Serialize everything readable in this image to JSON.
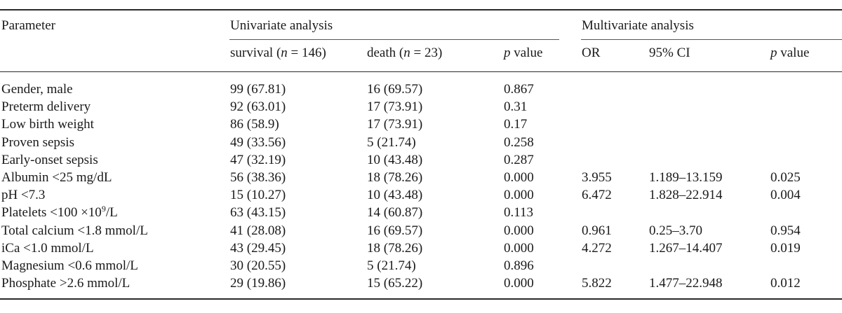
{
  "table": {
    "header": {
      "parameter": "Parameter",
      "univariate": "Univariate analysis",
      "multivariate": "Multivariate analysis"
    },
    "subheaders": {
      "survival": {
        "pre": "survival (",
        "var": "n",
        "post": " = 146)"
      },
      "death": {
        "pre": "death (",
        "var": "n",
        "post": " = 23)"
      },
      "p_uni": {
        "var": "p",
        "post": " value"
      },
      "or": "OR",
      "ci": "95% CI",
      "p_multi": {
        "var": "p",
        "post": " value"
      }
    },
    "rows": [
      {
        "param": "Gender, male",
        "sup": "",
        "param_post": "",
        "survival": "99 (67.81)",
        "death": "16 (69.57)",
        "p": "0.867",
        "or": "",
        "ci": "",
        "p2": ""
      },
      {
        "param": "Preterm delivery",
        "sup": "",
        "param_post": "",
        "survival": "92 (63.01)",
        "death": "17 (73.91)",
        "p": "0.31",
        "or": "",
        "ci": "",
        "p2": ""
      },
      {
        "param": "Low birth weight",
        "sup": "",
        "param_post": "",
        "survival": "86 (58.9)",
        "death": "17 (73.91)",
        "p": "0.17",
        "or": "",
        "ci": "",
        "p2": ""
      },
      {
        "param": "Proven sepsis",
        "sup": "",
        "param_post": "",
        "survival": "49 (33.56)",
        "death": "5 (21.74)",
        "p": "0.258",
        "or": "",
        "ci": "",
        "p2": ""
      },
      {
        "param": "Early-onset sepsis",
        "sup": "",
        "param_post": "",
        "survival": "47 (32.19)",
        "death": "10 (43.48)",
        "p": "0.287",
        "or": "",
        "ci": "",
        "p2": ""
      },
      {
        "param": "Albumin <25 mg/dL",
        "sup": "",
        "param_post": "",
        "survival": "56 (38.36)",
        "death": "18 (78.26)",
        "p": "0.000",
        "or": "3.955",
        "ci": "1.189–13.159",
        "p2": "0.025"
      },
      {
        "param": "pH <7.3",
        "sup": "",
        "param_post": "",
        "survival": "15 (10.27)",
        "death": "10 (43.48)",
        "p": "0.000",
        "or": "6.472",
        "ci": "1.828–22.914",
        "p2": "0.004"
      },
      {
        "param": "Platelets <100 ×10",
        "sup": "9",
        "param_post": "/L",
        "survival": "63 (43.15)",
        "death": "14 (60.87)",
        "p": "0.113",
        "or": "",
        "ci": "",
        "p2": ""
      },
      {
        "param": "Total calcium <1.8 mmol/L",
        "sup": "",
        "param_post": "",
        "survival": "41 (28.08)",
        "death": "16 (69.57)",
        "p": "0.000",
        "or": "0.961",
        "ci": "0.25–3.70",
        "p2": "0.954"
      },
      {
        "param": "iCa <1.0 mmol/L",
        "sup": "",
        "param_post": "",
        "survival": "43 (29.45)",
        "death": "18 (78.26)",
        "p": "0.000",
        "or": "4.272",
        "ci": "1.267–14.407",
        "p2": "0.019"
      },
      {
        "param": "Magnesium <0.6 mmol/L",
        "sup": "",
        "param_post": "",
        "survival": "30 (20.55)",
        "death": "5 (21.74)",
        "p": "0.896",
        "or": "",
        "ci": "",
        "p2": ""
      },
      {
        "param": "Phosphate >2.6 mmol/L",
        "sup": "",
        "param_post": "",
        "survival": "29 (19.86)",
        "death": "15 (65.22)",
        "p": "0.000",
        "or": "5.822",
        "ci": "1.477–22.948",
        "p2": "0.012"
      }
    ]
  }
}
